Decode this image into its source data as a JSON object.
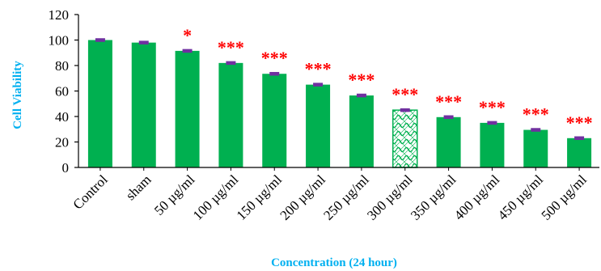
{
  "chart_data": {
    "type": "bar",
    "categories": [
      "Control",
      "sham",
      "50 µg/ml",
      "100 µg/ml",
      "150 µg/ml",
      "200 µg/ml",
      "250 µg/ml",
      "300 µg/ml",
      "350 µg/ml",
      "400 µg/ml",
      "450 µg/ml",
      "500 µg/ml"
    ],
    "values": [
      100,
      98,
      91.5,
      82,
      73.5,
      65,
      56.5,
      45,
      39.5,
      35,
      29.5,
      23
    ],
    "errors": [
      0.8,
      0.8,
      0.8,
      0.8,
      0.8,
      0.8,
      0.8,
      0.8,
      0.8,
      0.8,
      0.8,
      0.8
    ],
    "significance": [
      "",
      "",
      "*",
      "***",
      "***",
      "***",
      "***",
      "***",
      "***",
      "***",
      "***",
      "***"
    ],
    "highlighted_category": "300 µg/ml",
    "title": "",
    "xlabel": "Concentration (24 hour)",
    "ylabel": "Cell Viability",
    "ylim": [
      0,
      120
    ],
    "yticks": [
      "0",
      "20",
      "40",
      "60",
      "80",
      "100",
      "120"
    ],
    "grid": false,
    "colors": {
      "bar": "#00b050",
      "bar_highlight_stroke": "#00b050",
      "error_bar": "#7030a0",
      "significance": "#ff0000",
      "axis_title": "#00b0f0",
      "axis": "#000000"
    }
  }
}
